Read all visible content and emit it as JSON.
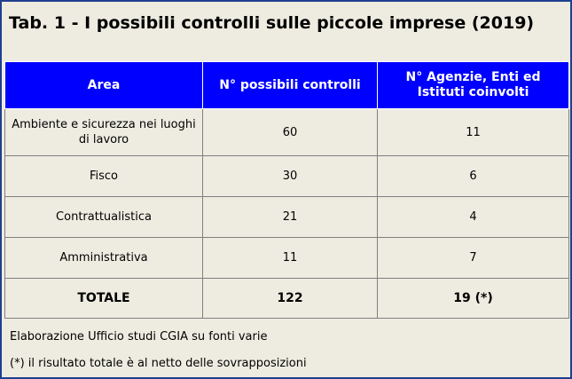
{
  "title": "Tab. 1 - I possibili controlli sulle piccole imprese (2019)",
  "table": {
    "headers": [
      "Area",
      "N° possibili controlli",
      "N° Agenzie, Enti ed Istituti coinvolti"
    ],
    "rows": [
      [
        "Ambiente e sicurezza nei luoghi di lavoro",
        "60",
        "11"
      ],
      [
        "Fisco",
        "30",
        "6"
      ],
      [
        "Contrattualistica",
        "21",
        "4"
      ],
      [
        "Amministrativa",
        "11",
        "7"
      ]
    ],
    "total": [
      "TOTALE",
      "122",
      "19 (*)"
    ]
  },
  "notes": {
    "source": "Elaborazione Ufficio studi CGIA su fonti varie",
    "footnote": "(*) il risultato totale è al netto delle sovrapposizioni"
  }
}
